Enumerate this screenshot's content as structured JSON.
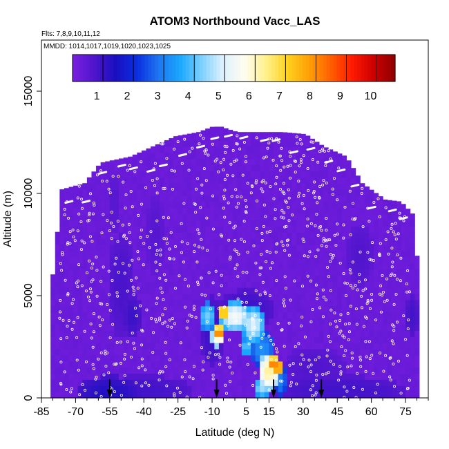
{
  "chart_data": {
    "type": "heatmap",
    "title": "ATOM3 Northbound Vacc_LAS",
    "flights_note": "Flts: 7,8,9,10,11,12",
    "dates_note": "MMDD: 1014,1017,1019,1020,1023,1025",
    "xlabel": "Latitude (deg N)",
    "ylabel": "Altitude (m)",
    "xlim": [
      -85,
      85
    ],
    "ylim": [
      0,
      17500
    ],
    "x_ticks": [
      -85,
      -70,
      -55,
      -40,
      -25,
      -10,
      5,
      15,
      30,
      45,
      60,
      75
    ],
    "y_ticks": [
      0,
      5000,
      10000,
      15000
    ],
    "colorbar": {
      "min": 0,
      "max": 10.6,
      "tick_labels": [
        "1",
        "2",
        "3",
        "4",
        "5",
        "6",
        "7",
        "8",
        "9",
        "10"
      ],
      "colors": [
        "#7a1fe0",
        "#5015cc",
        "#1a0fc0",
        "#0a2ee0",
        "#1f75f0",
        "#1aa8ff",
        "#7dcffd",
        "#dff1fe",
        "#fffdf0",
        "#fff08a",
        "#ffd21e",
        "#ffa007",
        "#ff5f00",
        "#ff1a00",
        "#cc0000",
        "#8e0000"
      ]
    },
    "coverage": [
      [
        -80,
        5000
      ],
      [
        -75,
        10200
      ],
      [
        -65,
        10500
      ],
      [
        -58,
        11500
      ],
      [
        -45,
        11800
      ],
      [
        -35,
        12300
      ],
      [
        -25,
        12800
      ],
      [
        -15,
        13000
      ],
      [
        -8,
        13300
      ],
      [
        0,
        13000
      ],
      [
        10,
        13000
      ],
      [
        20,
        13000
      ],
      [
        30,
        12900
      ],
      [
        38,
        12300
      ],
      [
        48,
        11800
      ],
      [
        55,
        10500
      ],
      [
        65,
        9700
      ],
      [
        72,
        9600
      ],
      [
        78,
        8900
      ],
      [
        80,
        5000
      ]
    ],
    "base_value": 0.2,
    "features": [
      {
        "lat": -55,
        "alt": 200,
        "dx": 14,
        "dy": 900,
        "value": 1.3
      },
      {
        "lat": -40,
        "alt": 400,
        "dx": 22,
        "dy": 700,
        "value": 0.9
      },
      {
        "lat": 45,
        "alt": 400,
        "dx": 30,
        "dy": 700,
        "value": 0.9
      },
      {
        "lat": 65,
        "alt": 300,
        "dx": 10,
        "dy": 600,
        "value": 0.8
      },
      {
        "lat": -50,
        "alt": 5500,
        "dx": 6,
        "dy": 2500,
        "value": 0.8
      },
      {
        "lat": -45,
        "alt": 4000,
        "dx": 4,
        "dy": 1000,
        "value": 1.0
      },
      {
        "lat": -53,
        "alt": 9500,
        "dx": 3,
        "dy": 1500,
        "value": 0.6
      },
      {
        "lat": -35,
        "alt": 8000,
        "dx": 4,
        "dy": 2000,
        "value": 0.6
      },
      {
        "lat": 55,
        "alt": 7000,
        "dx": 6,
        "dy": 1500,
        "value": 0.7
      },
      {
        "lat": 78,
        "alt": 4000,
        "dx": 3,
        "dy": 1000,
        "value": 0.9
      },
      {
        "lat": -10,
        "alt": 3300,
        "dx": 5,
        "dy": 1800,
        "value": 1.0
      },
      {
        "lat": 5,
        "alt": 4300,
        "dx": 12,
        "dy": 1000,
        "value": 1.0
      },
      {
        "lat": 35,
        "alt": 1500,
        "dx": 14,
        "dy": 1000,
        "value": 0.7
      },
      {
        "lat": -12,
        "alt": 4000,
        "dx": 4,
        "dy": 700,
        "value": 4.2
      },
      {
        "lat": -8,
        "alt": 3000,
        "dx": 3,
        "dy": 600,
        "value": 5.5
      },
      {
        "lat": -5,
        "alt": 4200,
        "dx": 3,
        "dy": 400,
        "value": 7.8
      },
      {
        "lat": -7,
        "alt": 3200,
        "dx": 3,
        "dy": 400,
        "value": 8.3
      },
      {
        "lat": 0,
        "alt": 4000,
        "dx": 7,
        "dy": 700,
        "value": 5.4
      },
      {
        "lat": 8,
        "alt": 3600,
        "dx": 5,
        "dy": 900,
        "value": 5.0
      },
      {
        "lat": 12,
        "alt": 2400,
        "dx": 6,
        "dy": 900,
        "value": 3.2
      },
      {
        "lat": 5,
        "alt": 2500,
        "dx": 3,
        "dy": 500,
        "value": 4.0
      },
      {
        "lat": 15,
        "alt": 1300,
        "dx": 5,
        "dy": 900,
        "value": 6.3
      },
      {
        "lat": 17,
        "alt": 1700,
        "dx": 3,
        "dy": 400,
        "value": 8.4
      },
      {
        "lat": 19,
        "alt": 1500,
        "dx": 2,
        "dy": 300,
        "value": 9.2
      },
      {
        "lat": 12,
        "alt": 500,
        "dx": 4,
        "dy": 500,
        "value": 4.5
      },
      {
        "lat": 20,
        "alt": 900,
        "dx": 3,
        "dy": 900,
        "value": 3.0
      }
    ],
    "arrows": [
      -55,
      -8,
      17,
      38
    ]
  }
}
